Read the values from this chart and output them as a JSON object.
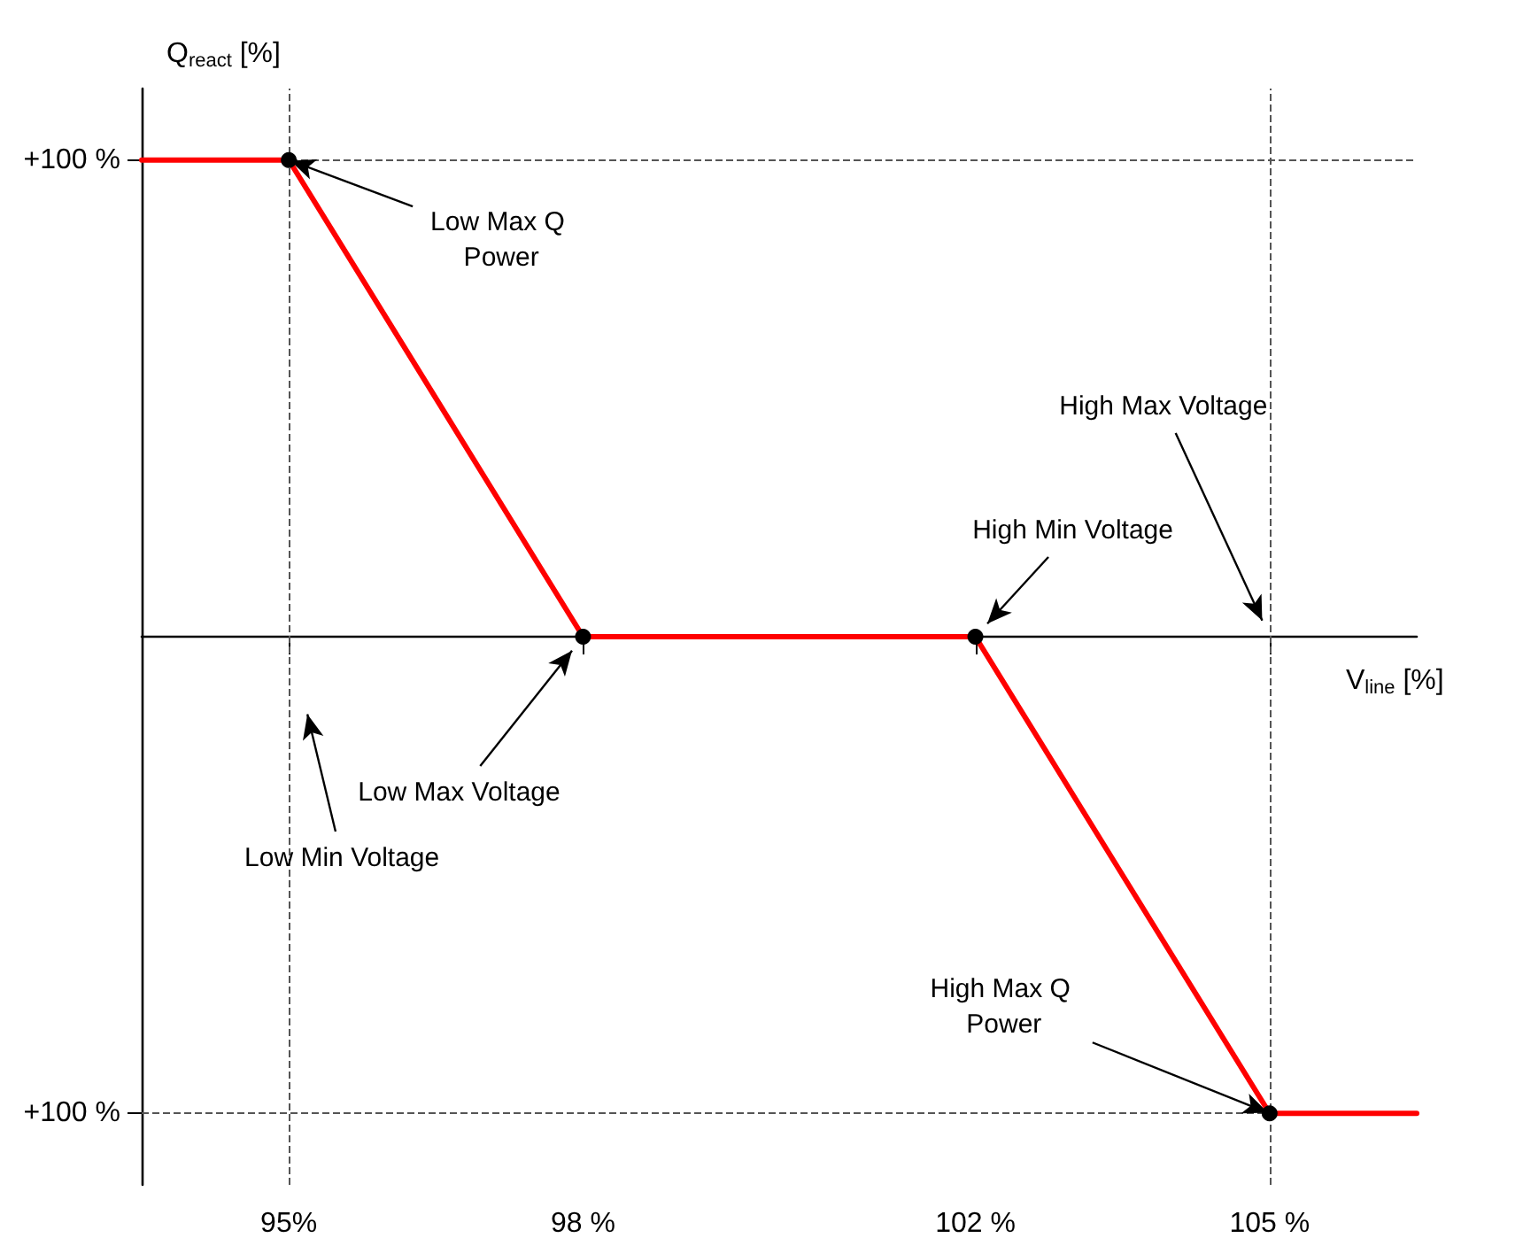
{
  "chart_data": {
    "type": "line",
    "xlabel": "V$_{line}$ [%]",
    "ylabel": "Q$_{react}$ [%]",
    "x": [
      93.5,
      95,
      98,
      102,
      105,
      106.5
    ],
    "series": [
      {
        "color": "#ff0000",
        "values": [
          100,
          100,
          0,
          0,
          -100,
          -100
        ]
      }
    ],
    "xlim": [
      93.5,
      106.5
    ],
    "xticks": [
      {
        "value": 95,
        "label": "95%"
      },
      {
        "value": 98,
        "label": "98 %"
      },
      {
        "value": 102,
        "label": "102 %"
      },
      {
        "value": 105,
        "label": "105 %"
      }
    ],
    "ylim": [
      -115,
      115
    ],
    "yticks": [
      {
        "value": -100,
        "label": "+100 %"
      },
      {
        "value": 100,
        "label": "+100 %"
      }
    ],
    "ref_lines": [
      {
        "axis": "x",
        "value": 95,
        "label": null,
        "line_style": "dashed",
        "color": "#555555"
      },
      {
        "axis": "x",
        "value": 105,
        "label": null,
        "line_style": "dashed",
        "color": "#555555"
      },
      {
        "axis": "y",
        "value": 100,
        "label": null,
        "line_style": "dashed",
        "color": "#555555"
      },
      {
        "axis": "y",
        "value": -100,
        "label": null,
        "line_style": "dashed",
        "color": "#555555"
      }
    ],
    "annotations": [
      {
        "text": "Low Max Q Power",
        "x": 95,
        "y": 100
      },
      "Low Min Voltage",
      "Low Max Voltage",
      "High Min Voltage",
      "High Max Voltage",
      {
        "text": "High Max Q Power",
        "x": 105,
        "y": -100
      }
    ],
    "grid": false,
    "marker": "circle",
    "line_style": "solid"
  }
}
